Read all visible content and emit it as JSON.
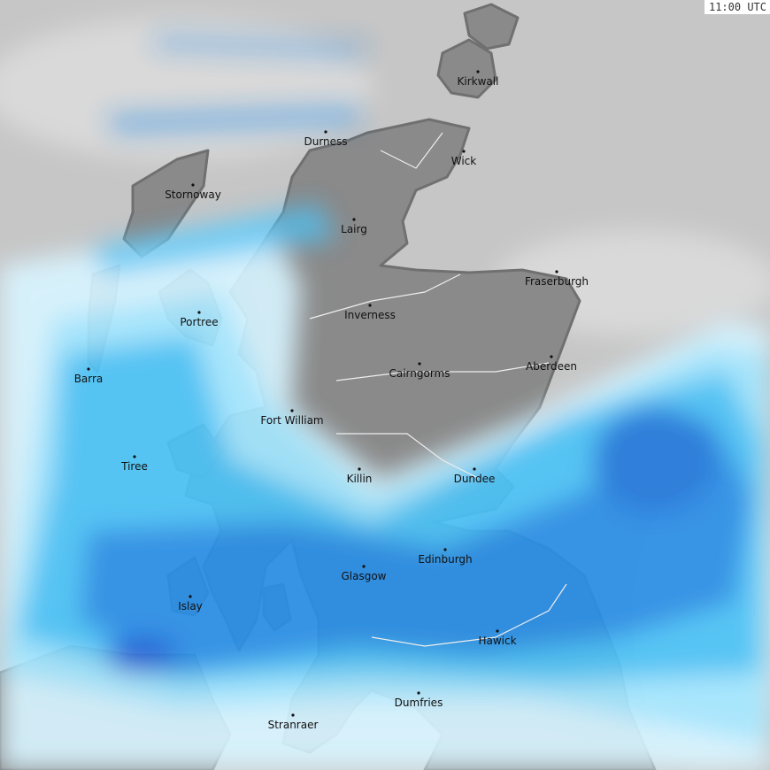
{
  "timestamp": "11:00 UTC",
  "colors": {
    "background": "#c6c6c6",
    "land": "#8a8a8a",
    "coast": "#707070",
    "rain_light": "#d8f4ff",
    "rain_cyan": "#9fe6ff",
    "rain_moderate": "#4cc3f7",
    "rain_heavy": "#2a8ee6",
    "rain_very_heavy": "#1b5ed8"
  },
  "cities": [
    {
      "name": "Kirkwall"
    },
    {
      "name": "Durness"
    },
    {
      "name": "Wick"
    },
    {
      "name": "Stornoway"
    },
    {
      "name": "Lairg"
    },
    {
      "name": "Fraserburgh"
    },
    {
      "name": "Inverness"
    },
    {
      "name": "Portree"
    },
    {
      "name": "Aberdeen"
    },
    {
      "name": "Barra"
    },
    {
      "name": "Cairngorms"
    },
    {
      "name": "Fort William"
    },
    {
      "name": "Tiree"
    },
    {
      "name": "Killin"
    },
    {
      "name": "Dundee"
    },
    {
      "name": "Edinburgh"
    },
    {
      "name": "Glasgow"
    },
    {
      "name": "Islay"
    },
    {
      "name": "Hawick"
    },
    {
      "name": "Dumfries"
    },
    {
      "name": "Stranraer"
    }
  ]
}
